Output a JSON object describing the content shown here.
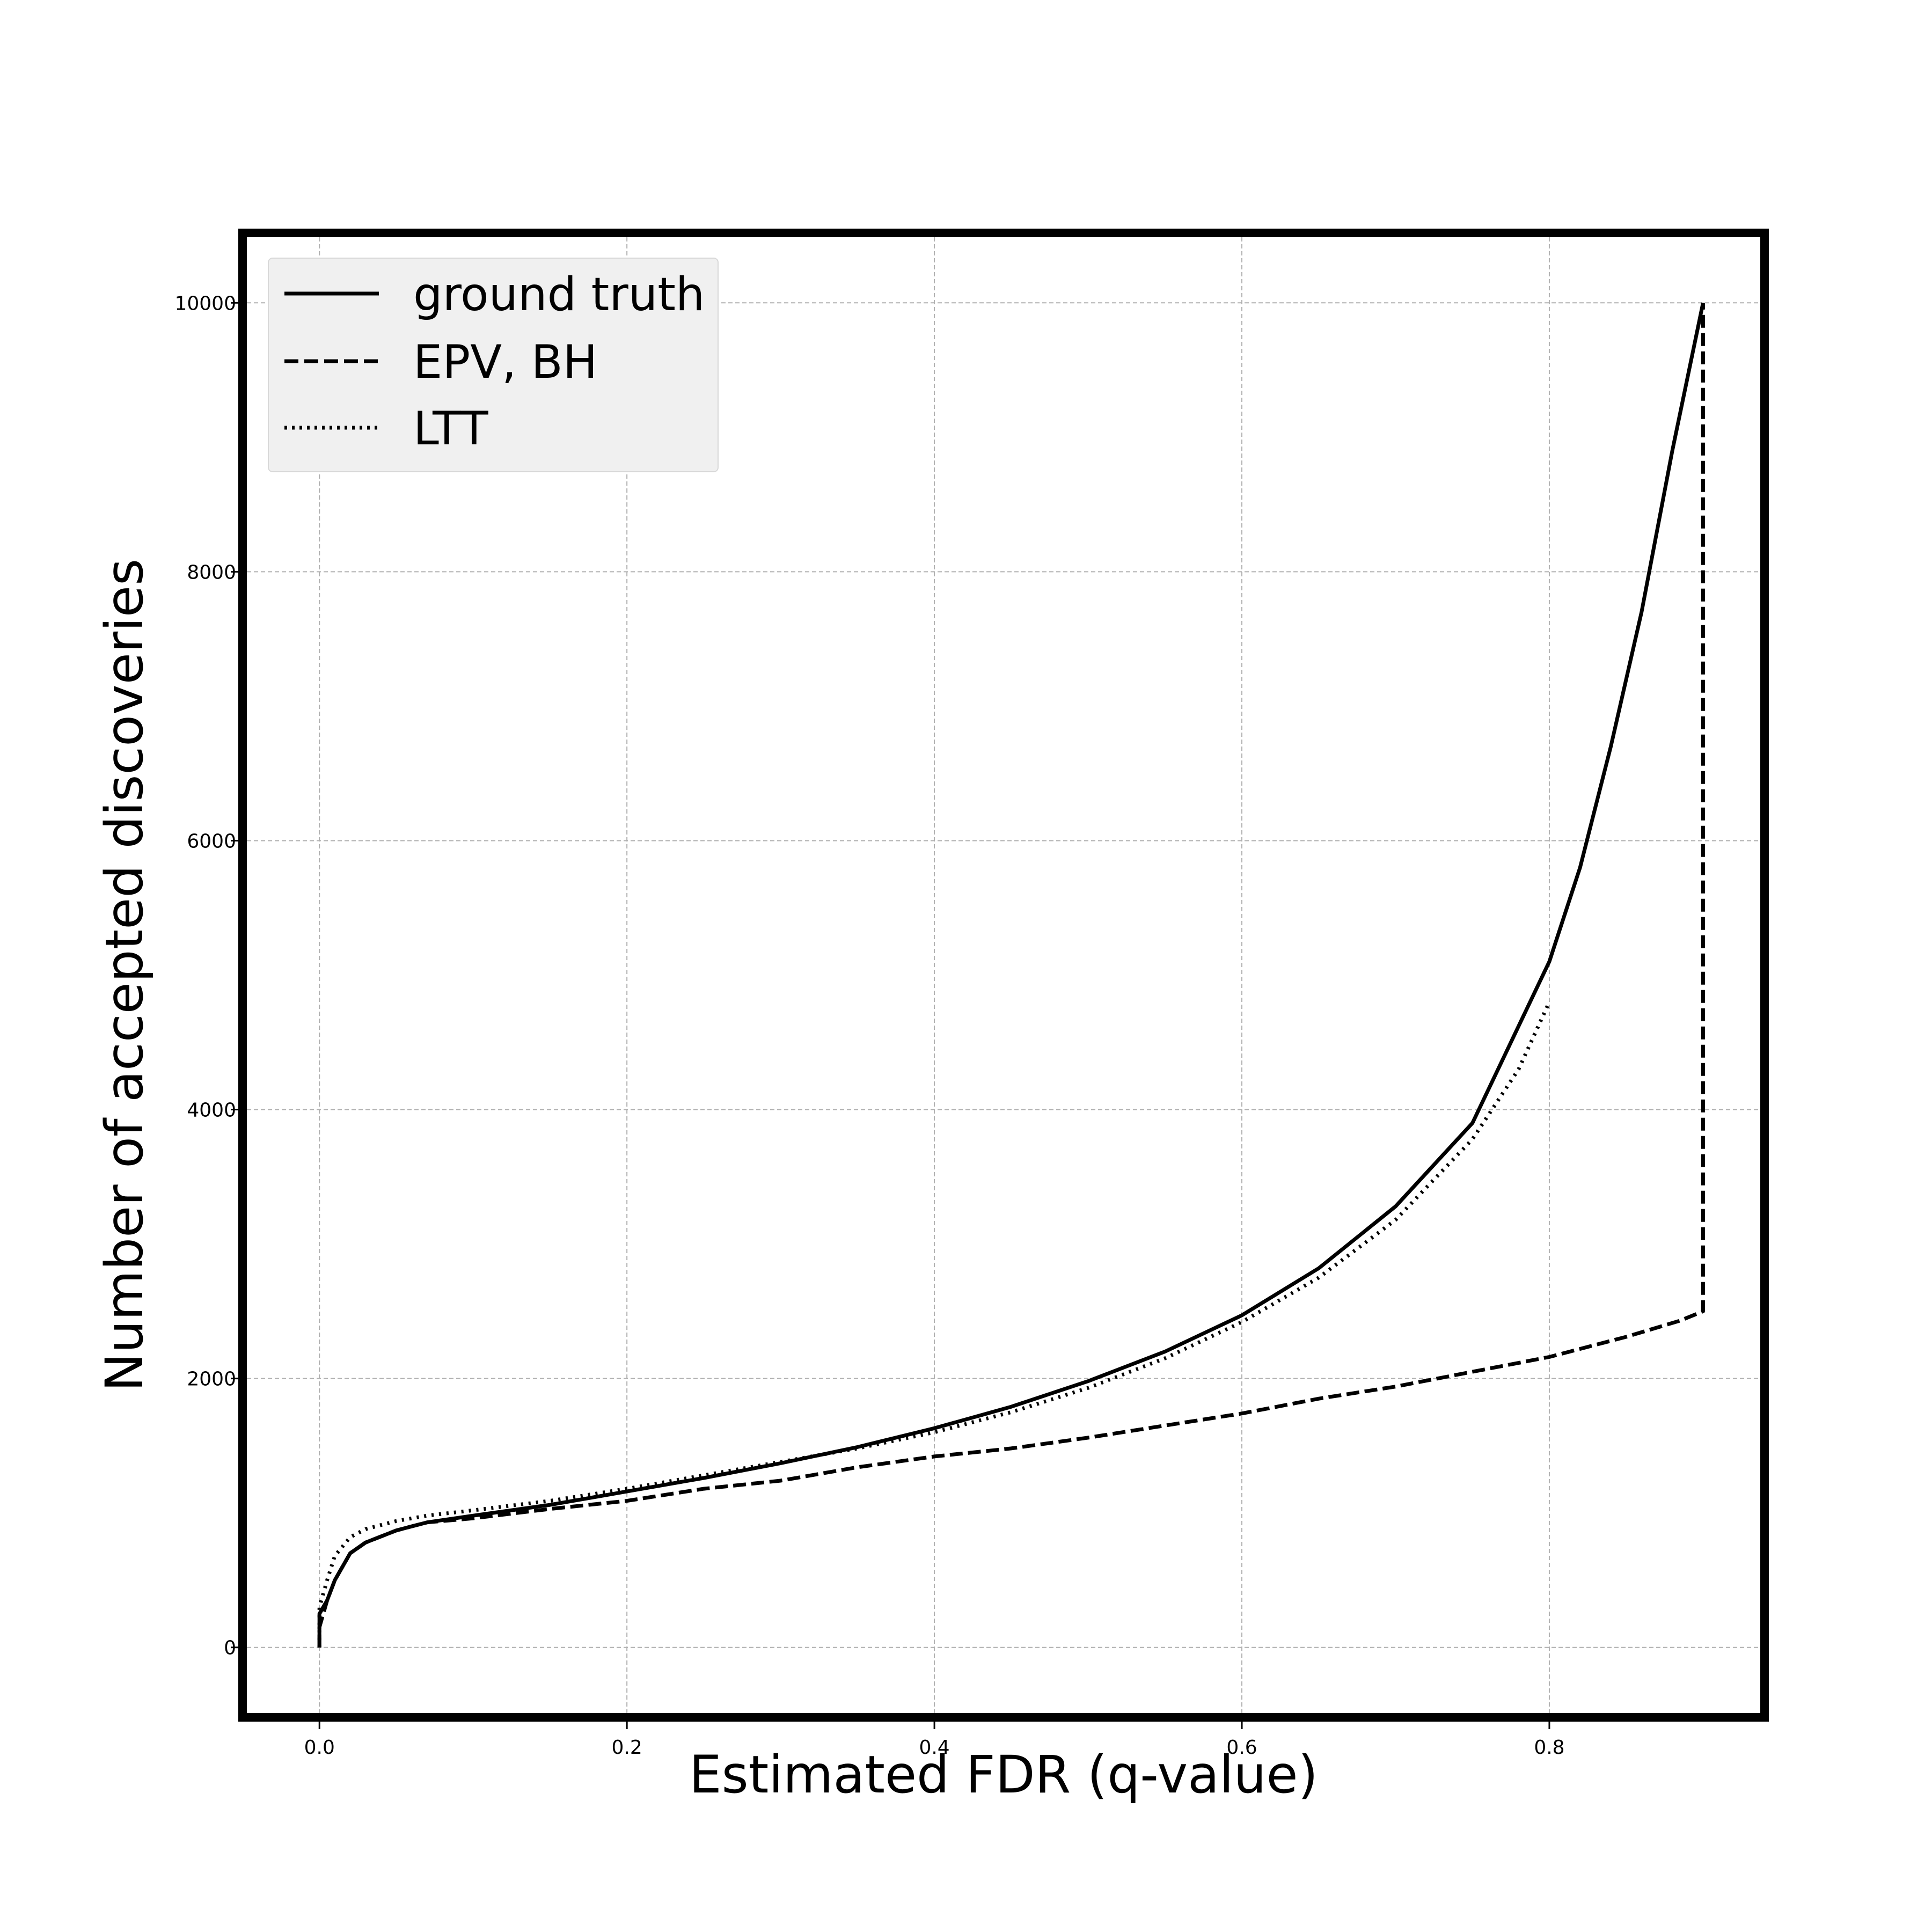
{
  "chart_data": {
    "type": "line",
    "title": "",
    "xlabel": "Estimated FDR (q-value)",
    "ylabel": "Number of accepted discoveries",
    "xlim": [
      -0.05,
      0.94
    ],
    "ylim": [
      -520,
      10520
    ],
    "xticks": [
      0.0,
      0.2,
      0.4,
      0.6,
      0.8
    ],
    "xtick_labels": [
      "0.0",
      "0.2",
      "0.4",
      "0.6",
      "0.8"
    ],
    "yticks": [
      0,
      2000,
      4000,
      6000,
      8000,
      10000
    ],
    "ytick_labels": [
      "0",
      "2000",
      "4000",
      "6000",
      "8000",
      "10000"
    ],
    "grid": true,
    "legend_position": "top-left",
    "series": [
      {
        "name": "ground truth",
        "style": "solid",
        "color": "#000000",
        "points": [
          [
            0.0,
            0
          ],
          [
            0.0,
            250
          ],
          [
            0.005,
            350
          ],
          [
            0.01,
            500
          ],
          [
            0.02,
            700
          ],
          [
            0.03,
            780
          ],
          [
            0.05,
            870
          ],
          [
            0.07,
            930
          ],
          [
            0.1,
            980
          ],
          [
            0.15,
            1060
          ],
          [
            0.2,
            1160
          ],
          [
            0.25,
            1260
          ],
          [
            0.3,
            1370
          ],
          [
            0.35,
            1490
          ],
          [
            0.4,
            1630
          ],
          [
            0.45,
            1790
          ],
          [
            0.5,
            1980
          ],
          [
            0.55,
            2200
          ],
          [
            0.6,
            2470
          ],
          [
            0.65,
            2820
          ],
          [
            0.7,
            3280
          ],
          [
            0.75,
            3900
          ],
          [
            0.8,
            5100
          ],
          [
            0.82,
            5800
          ],
          [
            0.84,
            6700
          ],
          [
            0.86,
            7700
          ],
          [
            0.88,
            8900
          ],
          [
            0.9,
            10000
          ]
        ]
      },
      {
        "name": "EPV, BH",
        "style": "dashed",
        "color": "#000000",
        "points": [
          [
            0.0,
            0
          ],
          [
            0.0,
            150
          ],
          [
            0.005,
            350
          ],
          [
            0.01,
            500
          ],
          [
            0.02,
            700
          ],
          [
            0.03,
            780
          ],
          [
            0.05,
            870
          ],
          [
            0.07,
            930
          ],
          [
            0.1,
            960
          ],
          [
            0.15,
            1030
          ],
          [
            0.2,
            1090
          ],
          [
            0.25,
            1180
          ],
          [
            0.3,
            1240
          ],
          [
            0.35,
            1340
          ],
          [
            0.4,
            1420
          ],
          [
            0.45,
            1480
          ],
          [
            0.5,
            1560
          ],
          [
            0.55,
            1650
          ],
          [
            0.6,
            1740
          ],
          [
            0.65,
            1850
          ],
          [
            0.7,
            1940
          ],
          [
            0.75,
            2050
          ],
          [
            0.8,
            2160
          ],
          [
            0.85,
            2310
          ],
          [
            0.885,
            2430
          ],
          [
            0.9,
            2500
          ],
          [
            0.9,
            10000
          ]
        ]
      },
      {
        "name": "LTT",
        "style": "dotted",
        "color": "#000000",
        "points": [
          [
            0.0,
            0
          ],
          [
            0.0,
            300
          ],
          [
            0.005,
            500
          ],
          [
            0.01,
            680
          ],
          [
            0.02,
            820
          ],
          [
            0.03,
            880
          ],
          [
            0.05,
            940
          ],
          [
            0.07,
            980
          ],
          [
            0.1,
            1020
          ],
          [
            0.15,
            1090
          ],
          [
            0.2,
            1180
          ],
          [
            0.25,
            1280
          ],
          [
            0.3,
            1380
          ],
          [
            0.35,
            1480
          ],
          [
            0.4,
            1600
          ],
          [
            0.45,
            1750
          ],
          [
            0.5,
            1930
          ],
          [
            0.55,
            2150
          ],
          [
            0.6,
            2420
          ],
          [
            0.65,
            2750
          ],
          [
            0.7,
            3180
          ],
          [
            0.75,
            3780
          ],
          [
            0.78,
            4300
          ],
          [
            0.8,
            4800
          ]
        ]
      }
    ]
  }
}
